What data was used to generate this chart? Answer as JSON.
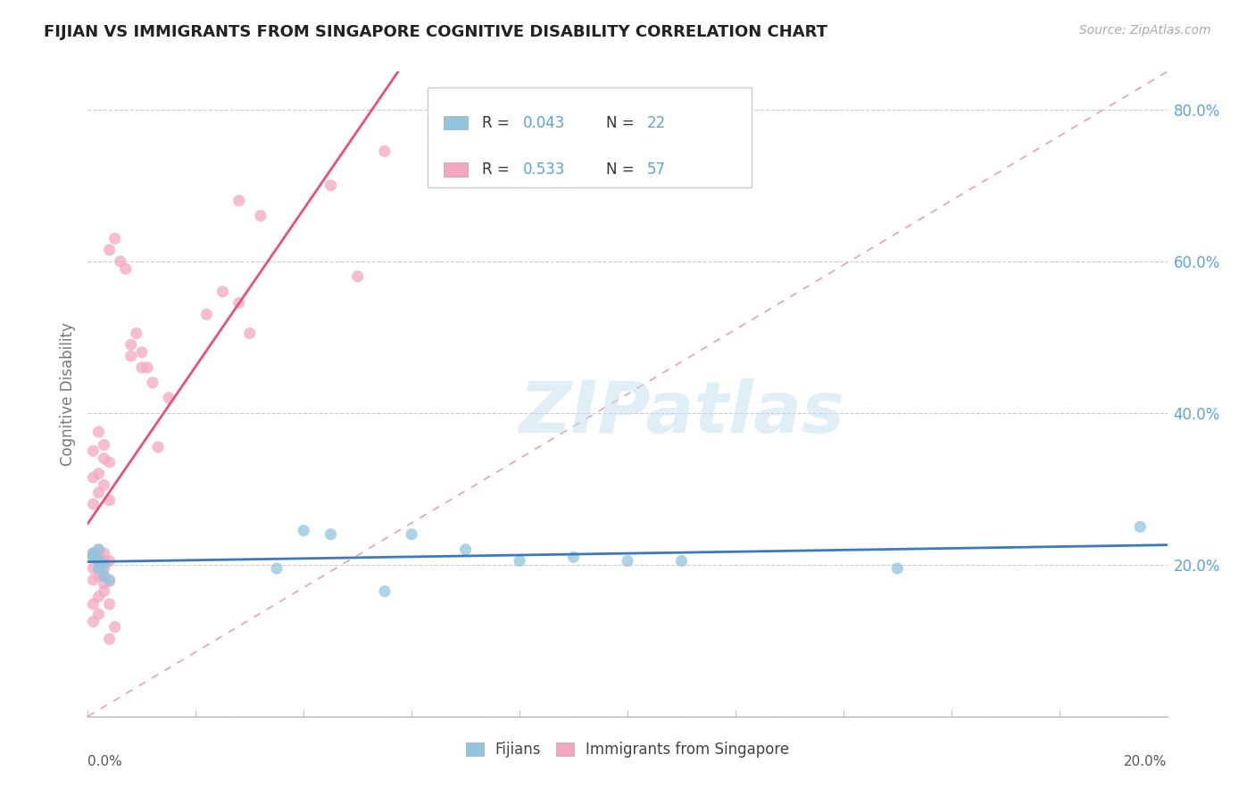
{
  "title": "FIJIAN VS IMMIGRANTS FROM SINGAPORE COGNITIVE DISABILITY CORRELATION CHART",
  "source": "Source: ZipAtlas.com",
  "ylabel": "Cognitive Disability",
  "watermark": "ZIPatlas",
  "legend_blue_r": "R = 0.043",
  "legend_blue_n": "N = 22",
  "legend_pink_r": "R = 0.533",
  "legend_pink_n": "N = 57",
  "blue_color": "#92c5de",
  "pink_color": "#f4a6c0",
  "blue_line_color": "#3a7bbf",
  "pink_line_color": "#e8507a",
  "diagonal_color": "#e8a0b0",
  "grid_color": "#cccccc",
  "fijians_label": "Fijians",
  "singapore_label": "Immigrants from Singapore",
  "blue_points_x": [
    0.001,
    0.002,
    0.003,
    0.002,
    0.001,
    0.002,
    0.003,
    0.004,
    0.001,
    0.002,
    0.04,
    0.045,
    0.035,
    0.06,
    0.07,
    0.09,
    0.055,
    0.08,
    0.1,
    0.11,
    0.15,
    0.195
  ],
  "blue_points_y": [
    0.215,
    0.205,
    0.2,
    0.22,
    0.21,
    0.195,
    0.185,
    0.18,
    0.21,
    0.205,
    0.245,
    0.24,
    0.195,
    0.24,
    0.22,
    0.21,
    0.165,
    0.205,
    0.205,
    0.205,
    0.195,
    0.25
  ],
  "pink_points_x": [
    0.001,
    0.002,
    0.003,
    0.001,
    0.002,
    0.003,
    0.004,
    0.002,
    0.001,
    0.003,
    0.002,
    0.001,
    0.004,
    0.003,
    0.002,
    0.001,
    0.002,
    0.003,
    0.004,
    0.002,
    0.001,
    0.003,
    0.005,
    0.004,
    0.002,
    0.001,
    0.003,
    0.002,
    0.001,
    0.003,
    0.002,
    0.001,
    0.004,
    0.003,
    0.004,
    0.01,
    0.012,
    0.015,
    0.011,
    0.013,
    0.025,
    0.028,
    0.022,
    0.03,
    0.008,
    0.009,
    0.008,
    0.01,
    0.005,
    0.004,
    0.006,
    0.007,
    0.045,
    0.055,
    0.032,
    0.028,
    0.05
  ],
  "pink_points_y": [
    0.215,
    0.205,
    0.215,
    0.195,
    0.22,
    0.185,
    0.205,
    0.195,
    0.18,
    0.195,
    0.215,
    0.215,
    0.178,
    0.165,
    0.158,
    0.148,
    0.135,
    0.205,
    0.148,
    0.185,
    0.125,
    0.175,
    0.118,
    0.102,
    0.32,
    0.315,
    0.34,
    0.295,
    0.28,
    0.305,
    0.375,
    0.35,
    0.335,
    0.358,
    0.285,
    0.48,
    0.44,
    0.42,
    0.46,
    0.355,
    0.56,
    0.545,
    0.53,
    0.505,
    0.49,
    0.505,
    0.475,
    0.46,
    0.63,
    0.615,
    0.6,
    0.59,
    0.7,
    0.745,
    0.66,
    0.68,
    0.58
  ],
  "xmin": 0.0,
  "xmax": 0.2,
  "ymin": 0.0,
  "ymax": 0.85,
  "right_ytick_vals": [
    0.2,
    0.4,
    0.6,
    0.8
  ],
  "right_ytick_labels": [
    "20.0%",
    "40.0%",
    "60.0%",
    "80.0%"
  ],
  "grid_ytick_vals": [
    0.0,
    0.2,
    0.4,
    0.6,
    0.8
  ],
  "right_tick_color": "#5ba3d9",
  "title_color": "#222222",
  "source_color": "#aaaaaa",
  "ylabel_color": "#777777"
}
